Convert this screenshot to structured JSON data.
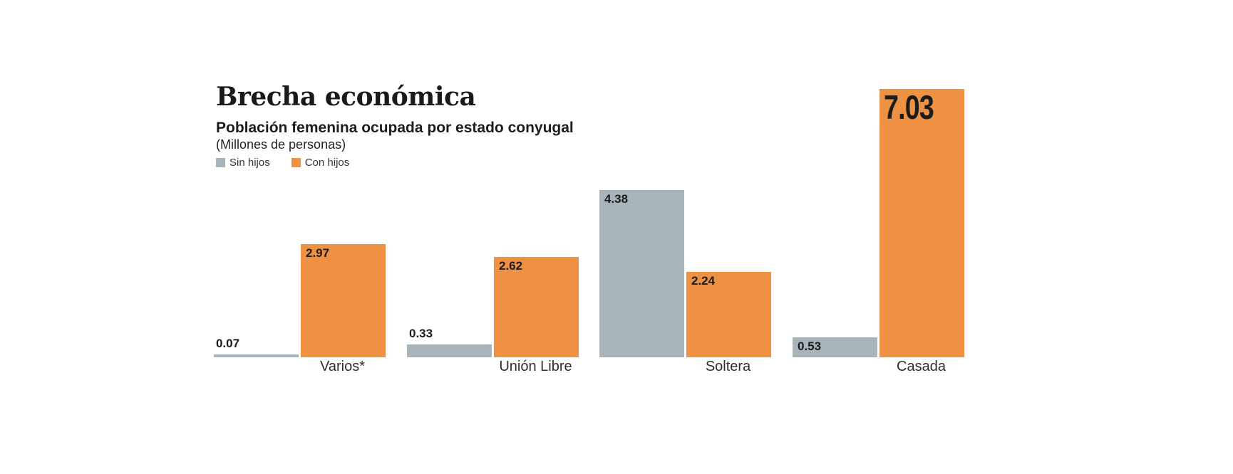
{
  "chart_data": {
    "type": "bar",
    "title": "Brecha económica",
    "subtitle": "Población femenina ocupada por estado conyugal",
    "units": "(Millones de personas)",
    "categories": [
      "Varios*",
      "Unión Libre",
      "Soltera",
      "Casada"
    ],
    "series": [
      {
        "name": "Sin hijos",
        "color": "#A9B4BA",
        "values": [
          0.07,
          0.33,
          4.38,
          0.53
        ]
      },
      {
        "name": "Con hijos",
        "color": "#EE9143",
        "values": [
          2.97,
          2.62,
          2.24,
          7.03
        ]
      }
    ],
    "ylim": [
      0,
      7.03
    ],
    "grid": false,
    "axis_lines": false,
    "legend_position": "top-left",
    "value_labels": "all, 2 decimals, inside top-left when bar tall enough, above bar otherwise",
    "emphasized_point": {
      "series": "Con hijos",
      "category": "Casada",
      "value": 7.03
    },
    "colors": {
      "background": "#FFFFFF",
      "label_text": "#1C1C1C"
    }
  }
}
